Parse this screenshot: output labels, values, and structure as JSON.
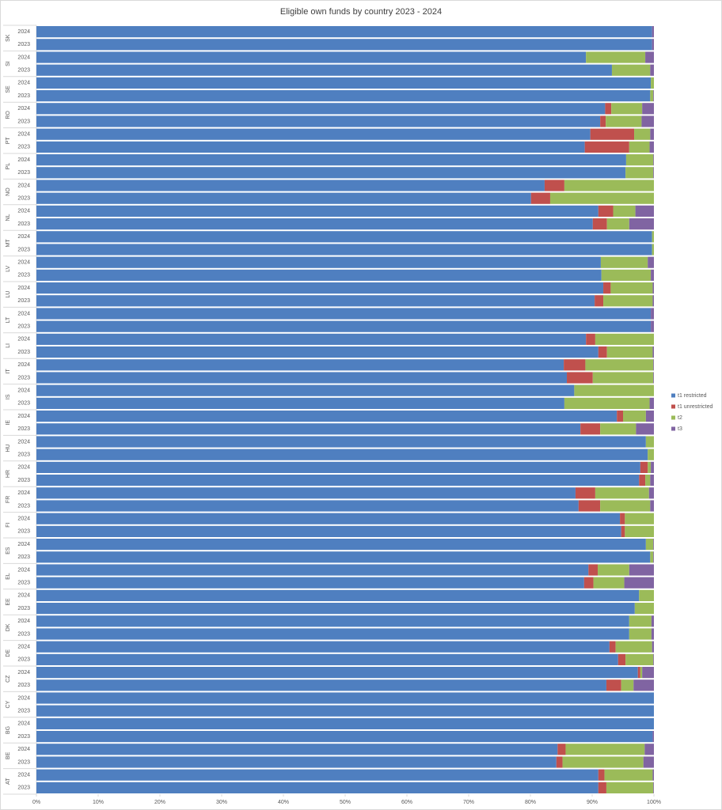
{
  "chart_data": {
    "type": "stacked-bar-horizontal",
    "title": "Eligible own funds by country 2023 - 2024",
    "groups": [
      "SK",
      "SI",
      "SE",
      "RO",
      "PT",
      "PL",
      "NO",
      "NL",
      "MT",
      "LV",
      "LU",
      "LT",
      "LI",
      "IT",
      "IS",
      "IE",
      "HU",
      "HR",
      "FR",
      "FI",
      "ES",
      "EL",
      "EE",
      "DK",
      "DE",
      "CZ",
      "CY",
      "BG",
      "BE",
      "AT"
    ],
    "categories": [
      "2024",
      "2023",
      "2024",
      "2023",
      "2024",
      "2023",
      "2024",
      "2023",
      "2024",
      "2023",
      "2024",
      "2023",
      "2024",
      "2023",
      "2024",
      "2023",
      "2024",
      "2023",
      "2024",
      "2023",
      "2024",
      "2023",
      "2024",
      "2023",
      "2024",
      "2023",
      "2024",
      "2023",
      "2024",
      "2023",
      "2024",
      "2023",
      "2024",
      "2023",
      "2024",
      "2023",
      "2024",
      "2023",
      "2024",
      "2023",
      "2024",
      "2023",
      "2024",
      "2023",
      "2024",
      "2023",
      "2024",
      "2023",
      "2024",
      "2023",
      "2024",
      "2023",
      "2024",
      "2023",
      "2024",
      "2023",
      "2024",
      "2023",
      "2024",
      "2023"
    ],
    "series": [
      {
        "name": "t1 restricted",
        "color": "#4f7fc0",
        "values": [
          99.7,
          99.7,
          89.0,
          93.2,
          99.5,
          99.4,
          92.1,
          91.3,
          89.7,
          88.8,
          95.5,
          95.4,
          82.3,
          80.1,
          91.0,
          90.1,
          99.7,
          99.7,
          91.4,
          91.5,
          91.8,
          90.4,
          99.5,
          99.5,
          89.0,
          91.0,
          85.4,
          85.9,
          87.1,
          85.5,
          94.0,
          88.1,
          98.7,
          99.0,
          97.8,
          97.6,
          87.3,
          87.8,
          94.5,
          94.7,
          98.7,
          99.4,
          89.4,
          88.7,
          97.6,
          96.9,
          96.0,
          96.0,
          92.8,
          94.2,
          97.4,
          92.3,
          100,
          100,
          100,
          99.8,
          84.4,
          84.2,
          91.0,
          91.0
        ]
      },
      {
        "name": "t1 unrestricted",
        "color": "#c0504d",
        "values": [
          0,
          0,
          0,
          0,
          0,
          0,
          1.0,
          0.9,
          7.1,
          7.2,
          0,
          0,
          3.2,
          3.1,
          2.4,
          2.3,
          0,
          0,
          0,
          0,
          1.2,
          1.4,
          0,
          0,
          1.5,
          1.4,
          3.5,
          4.2,
          0,
          0,
          1.0,
          3.2,
          0,
          0,
          1.2,
          1.0,
          3.2,
          3.5,
          0.8,
          0.6,
          0,
          0,
          1.5,
          1.5,
          0,
          0,
          0,
          0,
          1.0,
          1.2,
          0.4,
          2.4,
          0,
          0,
          0,
          0,
          1.3,
          1.0,
          1.0,
          1.3
        ]
      },
      {
        "name": "t2",
        "color": "#9bbb59",
        "values": [
          0,
          0,
          9.6,
          6.2,
          0.5,
          0.5,
          5.0,
          5.8,
          2.6,
          3.3,
          4.4,
          4.5,
          14.5,
          16.8,
          3.6,
          3.6,
          0.3,
          0.3,
          7.6,
          8.0,
          6.8,
          8.0,
          0,
          0,
          9.5,
          7.4,
          11.0,
          9.8,
          12.9,
          13.8,
          3.7,
          5.8,
          1.3,
          1.0,
          0.5,
          0.8,
          8.7,
          8.1,
          4.7,
          4.7,
          1.2,
          0.5,
          5.1,
          5.0,
          2.4,
          3.1,
          3.6,
          3.6,
          5.9,
          4.5,
          0.3,
          2.0,
          0,
          0,
          0,
          0,
          12.8,
          13.1,
          7.8,
          7.6
        ]
      },
      {
        "name": "t3",
        "color": "#8064a2",
        "values": [
          0.3,
          0.3,
          1.4,
          0.6,
          0,
          0.1,
          1.9,
          2.0,
          0.6,
          0.7,
          0.1,
          0.1,
          0,
          0,
          3.0,
          4.0,
          0,
          0,
          1.0,
          0.5,
          0.2,
          0.2,
          0.5,
          0.5,
          0,
          0.2,
          0.1,
          0.1,
          0,
          0.7,
          1.3,
          2.9,
          0,
          0,
          0.5,
          0.6,
          0.8,
          0.6,
          0,
          0,
          0.1,
          0.1,
          4.0,
          4.8,
          0,
          0,
          0.4,
          0.4,
          0.3,
          0.1,
          1.9,
          3.3,
          0,
          0,
          0,
          0.2,
          1.5,
          1.7,
          0.2,
          0.1
        ]
      }
    ],
    "xlim": [
      0,
      100
    ],
    "xticks": [
      {
        "value": 0,
        "label": "0%"
      },
      {
        "value": 10,
        "label": "10%"
      },
      {
        "value": 20,
        "label": "20%"
      },
      {
        "value": 30,
        "label": "30%"
      },
      {
        "value": 40,
        "label": "40%"
      },
      {
        "value": 50,
        "label": "50%"
      },
      {
        "value": 60,
        "label": "60%"
      },
      {
        "value": 70,
        "label": "70%"
      },
      {
        "value": 80,
        "label": "80%"
      },
      {
        "value": 90,
        "label": "90%"
      },
      {
        "value": 100,
        "label": "100%"
      }
    ],
    "legend": "right"
  }
}
